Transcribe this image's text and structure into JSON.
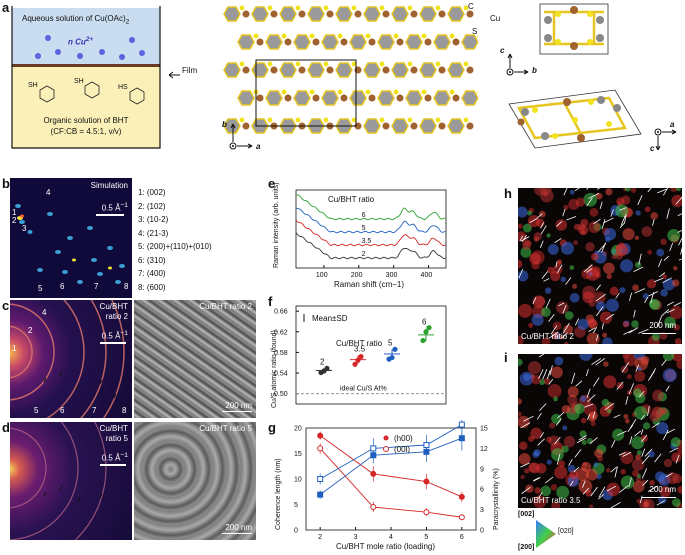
{
  "panel_labels": {
    "a": "a",
    "b": "b",
    "c": "c",
    "d": "d",
    "e": "e",
    "f": "f",
    "g": "g",
    "h": "h",
    "i": "i"
  },
  "panel_a": {
    "aqueous": "Aqueous solution of Cu(OAc)",
    "aqueous_sub": "2",
    "n_cu": "n Cu",
    "n_cu_sup": "2+",
    "film": "Film",
    "organic_line1": "Organic solution of BHT",
    "organic_line2": "(CF:CB = 4.5:1, v/v)",
    "atom_C": "C",
    "atom_Cu": "Cu",
    "atom_S": "S",
    "axis_b": "b",
    "axis_a": "a",
    "axis_c": "c",
    "sh_label": "SH",
    "hs_label": "HS"
  },
  "panel_b": {
    "title": "Simulation",
    "scale": "0.5 Å",
    "scale_sup": "−1",
    "peaks": [
      "1: (002)",
      "2: (102)",
      "3: (10-2)",
      "4: (21-3)",
      "5: (200)+(110)+(010)",
      "6: (310)",
      "7: (400)",
      "8: (600)"
    ],
    "spot_labels": [
      "1",
      "2",
      "3",
      "4",
      "5",
      "6",
      "7",
      "8"
    ]
  },
  "panel_c": {
    "label1": "Cu/BHT",
    "label2": "ratio 2",
    "scale": "0.5 Å",
    "scale_sup": "−1",
    "sem_label": "Cu/BHT ratio 2",
    "sem_scale": "200 nm",
    "ring_labels": [
      "1",
      "2",
      "4",
      "5",
      "6",
      "7",
      "8"
    ]
  },
  "panel_d": {
    "label1": "Cu/BHT",
    "label2": "ratio 5",
    "scale": "0.5 Å",
    "scale_sup": "−1",
    "sem_label": "Cu/BHT ratio 5",
    "sem_scale": "200 nm"
  },
  "panel_h": {
    "label": "Cu/BHT ratio 2",
    "scale": "200 nm"
  },
  "panel_i": {
    "label": "Cu/BHT ratio 3.5",
    "scale": "200 nm"
  },
  "orientation_key": {
    "top": "[002]",
    "right": "[020]",
    "left": "[200]"
  },
  "colors": {
    "red": "#d62728",
    "blue": "#1f5fbf",
    "green": "#2ca02c",
    "black": "#333333",
    "accent_yellow": "#f2d82a"
  },
  "chart_data": [
    {
      "id": "e",
      "type": "line",
      "title": "Cu/BHT ratio",
      "xlabel": "Raman shift (cm−1)",
      "ylabel": "Raman intensity (arb. units)",
      "xlim": [
        20,
        450
      ],
      "xticks": [
        100,
        200,
        300,
        400
      ],
      "series": [
        {
          "name": "6",
          "color": "#2ca02c",
          "offset": 3.0
        },
        {
          "name": "5",
          "color": "#1f5fbf",
          "offset": 2.0
        },
        {
          "name": "3.5",
          "color": "#d62728",
          "offset": 1.0
        },
        {
          "name": "2",
          "color": "#333333",
          "offset": 0.0
        }
      ],
      "peak_positions": [
        330,
        355,
        415
      ]
    },
    {
      "id": "f",
      "type": "scatter",
      "legend": "Mean±SD",
      "legend_title": "Cu/BHT ratio",
      "ylabel": "Cu/S atomic ratio (found)",
      "ylim": [
        0.48,
        0.67
      ],
      "yticks": [
        0.5,
        0.54,
        0.58,
        0.62,
        0.66
      ],
      "reference_label": "ideal Cu/S At%",
      "reference_value": 0.5,
      "series": [
        {
          "name": "2",
          "color": "#333333",
          "mean": 0.545,
          "sd": 0.004,
          "points": [
            0.541,
            0.544,
            0.549
          ]
        },
        {
          "name": "3.5",
          "color": "#d62728",
          "mean": 0.566,
          "sd": 0.008,
          "points": [
            0.557,
            0.565,
            0.572
          ]
        },
        {
          "name": "5",
          "color": "#1f5fbf",
          "mean": 0.577,
          "sd": 0.009,
          "points": [
            0.567,
            0.57,
            0.586
          ]
        },
        {
          "name": "6",
          "color": "#2ca02c",
          "mean": 0.614,
          "sd": 0.012,
          "points": [
            0.603,
            0.62,
            0.628
          ]
        }
      ]
    },
    {
      "id": "g",
      "type": "line",
      "xlabel": "Cu/BHT mole ratio (loading)",
      "ylabel_left": "Coherence length (nm)",
      "ylabel_right": "Paracrystallinity (%)",
      "x": [
        2,
        3.5,
        5,
        6
      ],
      "xticks": [
        2,
        3,
        4,
        5,
        6
      ],
      "ylim_left": [
        0,
        20
      ],
      "yticks_left": [
        0,
        5,
        10,
        15,
        20
      ],
      "ylim_right": [
        0,
        15
      ],
      "yticks_right": [
        0,
        3,
        6,
        9,
        12,
        15
      ],
      "series": [
        {
          "name": "(h00)",
          "axis": "left",
          "color": "#d62728",
          "filled": true,
          "values": [
            18.5,
            11,
            9.5,
            6.5
          ],
          "err": [
            0.8,
            1.5,
            1.5,
            1.0
          ]
        },
        {
          "name": "(00l)",
          "axis": "left",
          "color": "#d62728",
          "filled": false,
          "values": [
            16,
            4.5,
            3.5,
            2.5
          ],
          "err": [
            1.0,
            1.0,
            0.8,
            0.5
          ]
        },
        {
          "name": "(h00)",
          "axis": "right",
          "color": "#1f5fbf",
          "filled": true,
          "values": [
            5.2,
            11,
            11.5,
            13.5
          ],
          "err": [
            0.6,
            1.2,
            1.5,
            1.8
          ]
        },
        {
          "name": "(00l)",
          "axis": "right",
          "color": "#1f5fbf",
          "filled": false,
          "values": [
            7.5,
            12,
            12.5,
            15.5
          ],
          "err": [
            0.8,
            1.5,
            1.5,
            1.5
          ]
        }
      ]
    }
  ]
}
